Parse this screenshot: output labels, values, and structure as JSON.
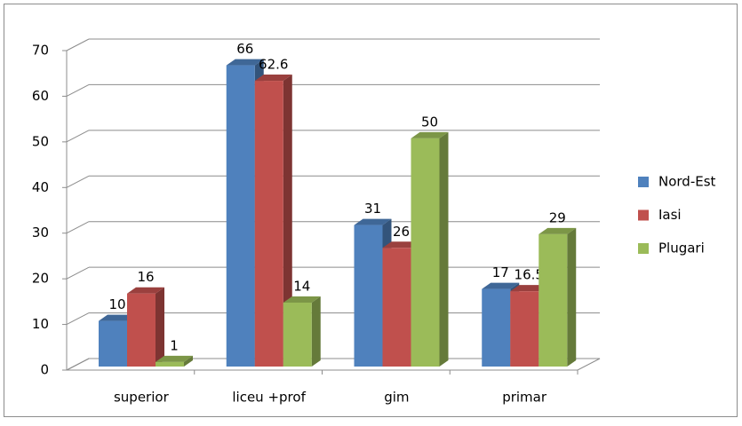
{
  "chart_data": {
    "type": "bar3d",
    "categories": [
      "superior",
      "liceu +prof",
      "gim",
      "primar"
    ],
    "series": [
      {
        "name": "Nord-Est",
        "color": "#4f81bd",
        "values": [
          10,
          66,
          31,
          17
        ]
      },
      {
        "name": "Iasi",
        "color": "#c0504d",
        "values": [
          16,
          62.6,
          26,
          16.5
        ]
      },
      {
        "name": "Plugari",
        "color": "#9bbb59",
        "values": [
          1,
          14,
          50,
          29
        ]
      }
    ],
    "ylim": [
      0,
      70
    ],
    "yticks": [
      0,
      10,
      20,
      30,
      40,
      50,
      60,
      70
    ],
    "grid": true,
    "legend": "right"
  }
}
